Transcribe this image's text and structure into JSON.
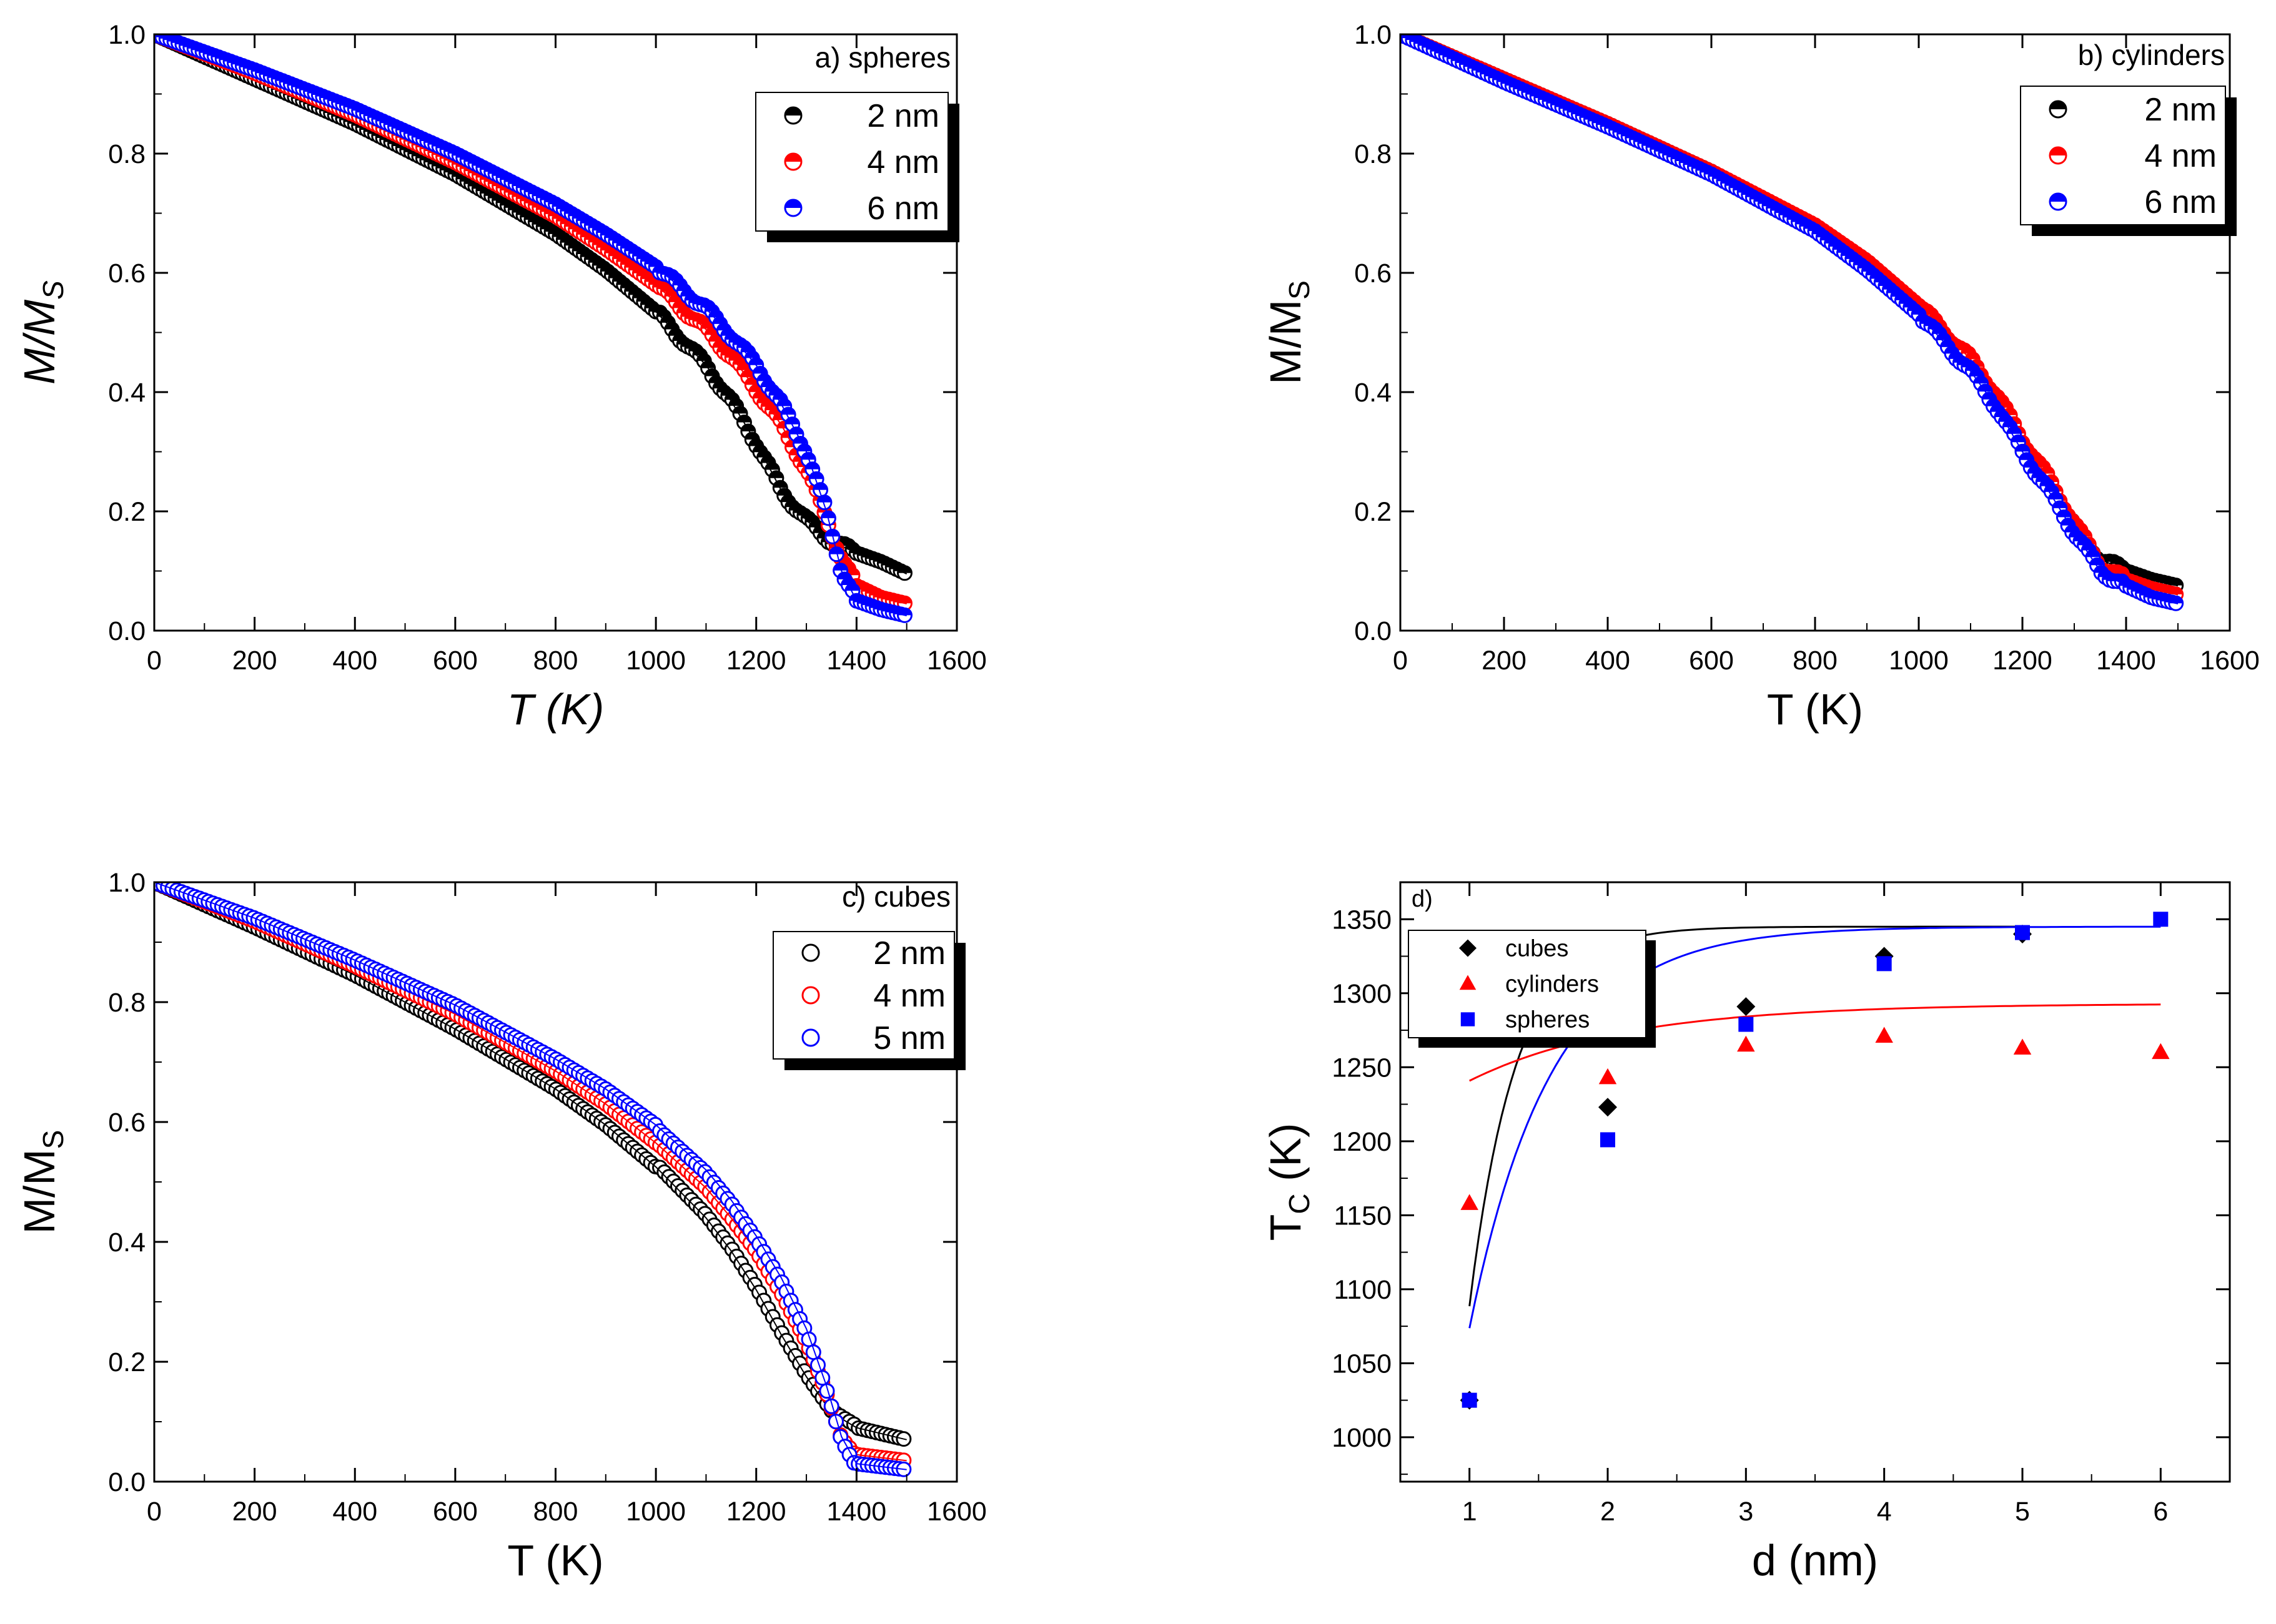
{
  "chart_data": [
    {
      "id": "a",
      "type": "scatter",
      "title": "a) spheres",
      "xlabel": "T (K)",
      "ylabel": "M/M",
      "ylabel_sub": "S",
      "xlim": [
        0,
        1600
      ],
      "ylim": [
        0,
        1.0
      ],
      "xticks": [
        "0",
        "200",
        "400",
        "600",
        "800",
        "1000",
        "1200",
        "1400",
        "1600"
      ],
      "yticks": [
        "0.0",
        "0.2",
        "0.4",
        "0.6",
        "0.8",
        "1.0"
      ],
      "marker": "half-filled circle",
      "series": [
        {
          "name": "2 nm",
          "color": "#000000",
          "x": [
            0,
            200,
            400,
            600,
            800,
            900,
            1000,
            1100,
            1150,
            1200,
            1250,
            1300,
            1350,
            1400,
            1450,
            1500
          ],
          "y": [
            1.0,
            0.925,
            0.85,
            0.765,
            0.665,
            0.605,
            0.535,
            0.445,
            0.385,
            0.315,
            0.235,
            0.185,
            0.15,
            0.13,
            0.115,
            0.095
          ]
        },
        {
          "name": "4 nm",
          "color": "#ff0000",
          "x": [
            0,
            200,
            400,
            600,
            800,
            900,
            1000,
            1100,
            1150,
            1200,
            1250,
            1300,
            1340,
            1370,
            1400,
            1450,
            1500
          ],
          "y": [
            1.0,
            0.935,
            0.865,
            0.785,
            0.695,
            0.64,
            0.58,
            0.505,
            0.46,
            0.405,
            0.345,
            0.27,
            0.19,
            0.12,
            0.075,
            0.055,
            0.045
          ]
        },
        {
          "name": "6 nm",
          "color": "#0000ff",
          "x": [
            0,
            200,
            400,
            600,
            800,
            900,
            1000,
            1100,
            1150,
            1200,
            1250,
            1300,
            1340,
            1370,
            1400,
            1450,
            1500
          ],
          "y": [
            1.0,
            0.94,
            0.875,
            0.8,
            0.715,
            0.665,
            0.61,
            0.54,
            0.495,
            0.445,
            0.38,
            0.3,
            0.2,
            0.1,
            0.05,
            0.035,
            0.025
          ]
        }
      ]
    },
    {
      "id": "b",
      "type": "scatter",
      "title": "b) cylinders",
      "xlabel": "T (K)",
      "ylabel": "M/M",
      "ylabel_sub": "S",
      "xlim": [
        0,
        1600
      ],
      "ylim": [
        0,
        1.0
      ],
      "xticks": [
        "0",
        "200",
        "400",
        "600",
        "800",
        "1000",
        "1200",
        "1400",
        "1600"
      ],
      "yticks": [
        "0.0",
        "0.2",
        "0.4",
        "0.6",
        "0.8",
        "1.0"
      ],
      "marker": "half-filled circle",
      "series": [
        {
          "name": "2 nm",
          "color": "#000000",
          "x": [
            0,
            200,
            400,
            600,
            800,
            900,
            1000,
            1100,
            1150,
            1200,
            1250,
            1300,
            1350,
            1400,
            1450,
            1500
          ],
          "y": [
            1.0,
            0.925,
            0.85,
            0.77,
            0.675,
            0.615,
            0.54,
            0.445,
            0.385,
            0.31,
            0.245,
            0.175,
            0.12,
            0.1,
            0.085,
            0.075
          ]
        },
        {
          "name": "4 nm",
          "color": "#ff0000",
          "x": [
            0,
            200,
            400,
            600,
            800,
            900,
            1000,
            1100,
            1150,
            1200,
            1250,
            1300,
            1350,
            1400,
            1450,
            1500
          ],
          "y": [
            1.0,
            0.925,
            0.85,
            0.77,
            0.68,
            0.62,
            0.545,
            0.455,
            0.395,
            0.32,
            0.255,
            0.18,
            0.11,
            0.085,
            0.07,
            0.06
          ]
        },
        {
          "name": "6 nm",
          "color": "#0000ff",
          "x": [
            0,
            200,
            400,
            600,
            800,
            900,
            1000,
            1100,
            1150,
            1200,
            1250,
            1300,
            1350,
            1400,
            1450,
            1500
          ],
          "y": [
            1.0,
            0.92,
            0.845,
            0.765,
            0.67,
            0.605,
            0.53,
            0.435,
            0.375,
            0.3,
            0.235,
            0.165,
            0.1,
            0.075,
            0.055,
            0.045
          ]
        }
      ]
    },
    {
      "id": "c",
      "type": "scatter",
      "title": "c) cubes",
      "xlabel": "T (K)",
      "ylabel": "M/M",
      "ylabel_sub": "S",
      "xlim": [
        0,
        1600
      ],
      "ylim": [
        0,
        1.0
      ],
      "xticks": [
        "0",
        "200",
        "400",
        "600",
        "800",
        "1000",
        "1200",
        "1400",
        "1600"
      ],
      "yticks": [
        "0.0",
        "0.2",
        "0.4",
        "0.6",
        "0.8",
        "1.0"
      ],
      "marker": "open circle",
      "series": [
        {
          "name": "2 nm",
          "color": "#000000",
          "x": [
            0,
            200,
            400,
            600,
            800,
            900,
            1000,
            1100,
            1150,
            1200,
            1250,
            1300,
            1350,
            1400,
            1450,
            1500
          ],
          "y": [
            1.0,
            0.925,
            0.845,
            0.755,
            0.655,
            0.595,
            0.525,
            0.44,
            0.385,
            0.32,
            0.245,
            0.175,
            0.115,
            0.09,
            0.08,
            0.07
          ]
        },
        {
          "name": "4 nm",
          "color": "#ff0000",
          "x": [
            0,
            200,
            400,
            600,
            800,
            900,
            1000,
            1100,
            1150,
            1200,
            1250,
            1300,
            1340,
            1370,
            1400,
            1450,
            1500
          ],
          "y": [
            1.0,
            0.935,
            0.86,
            0.78,
            0.685,
            0.63,
            0.565,
            0.49,
            0.44,
            0.385,
            0.315,
            0.235,
            0.15,
            0.075,
            0.045,
            0.04,
            0.035
          ]
        },
        {
          "name": "5 nm",
          "color": "#0000ff",
          "x": [
            0,
            200,
            400,
            600,
            800,
            900,
            1000,
            1100,
            1150,
            1200,
            1250,
            1300,
            1340,
            1370,
            1400,
            1450,
            1500
          ],
          "y": [
            1.0,
            0.94,
            0.87,
            0.795,
            0.705,
            0.655,
            0.595,
            0.52,
            0.47,
            0.41,
            0.34,
            0.255,
            0.16,
            0.075,
            0.03,
            0.025,
            0.02
          ]
        }
      ]
    },
    {
      "id": "d",
      "type": "scatter",
      "title": "d)",
      "xlabel": "d (nm)",
      "ylabel": "T",
      "ylabel_sub": "C",
      "ylabel_suffix": " (K)",
      "xlim": [
        0.5,
        6.5
      ],
      "ylim": [
        970,
        1375
      ],
      "xticks": [
        "1",
        "2",
        "3",
        "4",
        "5",
        "6"
      ],
      "yticks": [
        "1000",
        "1050",
        "1100",
        "1150",
        "1200",
        "1250",
        "1300",
        "1350"
      ],
      "series": [
        {
          "name": "cubes",
          "color": "#000000",
          "marker": "diamond",
          "x": [
            1,
            2,
            3,
            4,
            5
          ],
          "y": [
            1025,
            1223,
            1291,
            1325,
            1340
          ],
          "fit": {
            "a": 1345,
            "b": 5100,
            "c": 2.99,
            "xrange": [
              1,
              5
            ]
          }
        },
        {
          "name": "cylinders",
          "color": "#ff0000",
          "marker": "triangle",
          "x": [
            1,
            2,
            3,
            4,
            5,
            6
          ],
          "y": [
            1158,
            1243,
            1265,
            1271,
            1263,
            1260
          ],
          "fit": {
            "a": 1293,
            "b": 127,
            "c": 0.89,
            "xrange": [
              1,
              6
            ]
          }
        },
        {
          "name": "spheres",
          "color": "#0000ff",
          "marker": "square",
          "x": [
            1,
            2,
            3,
            4,
            5,
            6
          ],
          "y": [
            1025,
            1201,
            1279,
            1320,
            1341,
            1350
          ],
          "fit": {
            "a": 1345,
            "b": 1485,
            "c": 1.7,
            "xrange": [
              1,
              6
            ]
          }
        }
      ]
    }
  ]
}
